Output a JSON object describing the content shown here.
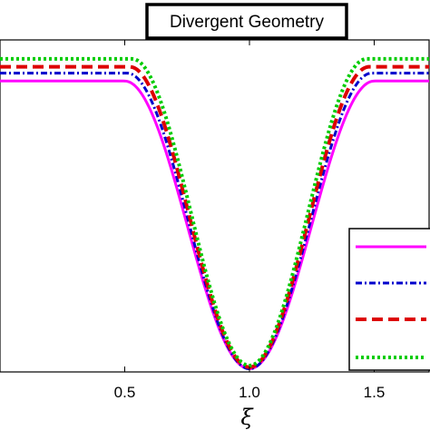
{
  "chart_data": {
    "type": "line",
    "title": "Divergent Geometry",
    "xlabel": "ξ",
    "ylabel": "",
    "x_ticks": [
      "0.5",
      "1.0",
      "1.5"
    ],
    "x_tick_values": [
      0.5,
      1.0,
      1.5
    ],
    "xlim": [
      0.0,
      1.72
    ],
    "ylim": [
      0.0,
      1.05
    ],
    "grid": false,
    "legend_position": "bottom-right",
    "series": [
      {
        "color": "#ff00ff",
        "dash": "solid",
        "plateau": 0.92,
        "trough": 0.01,
        "x": [
          0.0,
          0.5,
          0.6,
          0.7,
          0.8,
          0.9,
          1.0,
          1.1,
          1.2,
          1.3,
          1.4,
          1.5,
          1.72
        ],
        "y": [
          0.92,
          0.92,
          0.83,
          0.66,
          0.43,
          0.2,
          0.01,
          0.2,
          0.43,
          0.66,
          0.83,
          0.92,
          0.92
        ]
      },
      {
        "color": "#0000cc",
        "dash": "dashdot",
        "plateau": 0.945,
        "trough": 0.01,
        "x": [
          0.0,
          0.51,
          0.6,
          0.7,
          0.8,
          0.9,
          1.0,
          1.1,
          1.2,
          1.3,
          1.4,
          1.49,
          1.72
        ],
        "y": [
          0.945,
          0.945,
          0.85,
          0.68,
          0.44,
          0.2,
          0.01,
          0.2,
          0.44,
          0.68,
          0.85,
          0.945,
          0.945
        ]
      },
      {
        "color": "#dd0000",
        "dash": "dashed",
        "plateau": 0.965,
        "trough": 0.015,
        "x": [
          0.0,
          0.52,
          0.6,
          0.7,
          0.8,
          0.9,
          1.0,
          1.1,
          1.2,
          1.3,
          1.4,
          1.48,
          1.72
        ],
        "y": [
          0.965,
          0.965,
          0.87,
          0.69,
          0.45,
          0.21,
          0.015,
          0.21,
          0.45,
          0.69,
          0.87,
          0.965,
          0.965
        ]
      },
      {
        "color": "#00cc00",
        "dash": "dotted",
        "plateau": 0.99,
        "trough": 0.02,
        "x": [
          0.0,
          0.53,
          0.6,
          0.7,
          0.8,
          0.9,
          1.0,
          1.1,
          1.2,
          1.3,
          1.4,
          1.47,
          1.72
        ],
        "y": [
          0.99,
          0.99,
          0.9,
          0.72,
          0.47,
          0.22,
          0.02,
          0.22,
          0.47,
          0.72,
          0.9,
          0.99,
          0.99
        ]
      }
    ]
  }
}
